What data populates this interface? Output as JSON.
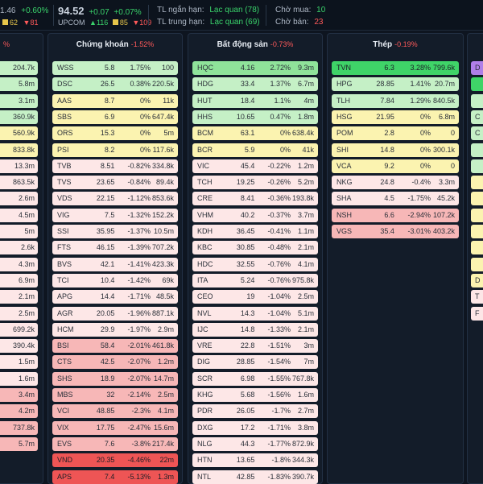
{
  "header": {
    "idx1_value": "1.46",
    "idx1_change": "+0.60%",
    "idx1_sq_count": "62",
    "idx1_down_count": "81",
    "idx2_value": "94.52",
    "idx2_change": "+0.07",
    "idx2_change_pct": "+0.07%",
    "idx2_name": "UPCOM",
    "idx2_up_count": "116",
    "idx2_sq_count": "85",
    "idx2_down_count": "109",
    "tl_short_label": "TL ngắn hạn:",
    "tl_short_value": "Lạc quan",
    "tl_short_score": "(78)",
    "tl_mid_label": "TL trung hạn:",
    "tl_mid_value": "Lạc quan",
    "tl_mid_score": "(69)",
    "buy_label": "Chờ mua:",
    "buy_value": "10",
    "sell_label": "Chờ bán:",
    "sell_value": "23",
    "up_arrow": "▲",
    "down_arrow": "▼"
  },
  "colors": {
    "up_strong": "#3fd468",
    "up_mid": "#8fe39a",
    "up_light": "#c5f0c6",
    "ref": "#fbf3b0",
    "down_light": "#fde7e7",
    "down_mid": "#f7b7b7",
    "down_strong": "#ee5555",
    "purple": "#b07fe8"
  },
  "left_partial": {
    "head_change": "%",
    "rows": [
      "204.7k",
      "5.8m",
      "3.1m",
      "360.9k",
      "560.9k",
      "833.8k",
      "13.3m",
      "863.5k",
      "2.6m",
      "4.5m",
      "5m",
      "2.6k",
      "4.3m",
      "6.9m",
      "2.1m",
      "2.5m",
      "699.2k",
      "390.4k",
      "1.5m",
      "1.6m",
      "3.4m",
      "4.2m",
      "737.8k",
      "5.7m"
    ],
    "tones": [
      "up_light",
      "up_light",
      "up_light",
      "up_light",
      "ref",
      "ref",
      "down_light",
      "down_light",
      "down_light",
      "down_light",
      "down_light",
      "down_light",
      "down_light",
      "down_light",
      "down_light",
      "down_light",
      "down_light",
      "down_light",
      "down_light",
      "down_light",
      "down_mid",
      "down_mid",
      "down_mid",
      "down_mid"
    ],
    "extra_marks": [
      "%",
      "",
      "%"
    ]
  },
  "sectors": [
    {
      "name": "Chứng khoán",
      "change": "-1.52%",
      "rows": [
        {
          "code": "WSS",
          "price": "5.8",
          "pct": "1.75%",
          "vol": "100",
          "tone": "up_light"
        },
        {
          "code": "DSC",
          "price": "26.5",
          "pct": "0.38%",
          "vol": "220.5k",
          "tone": "up_light"
        },
        {
          "code": "AAS",
          "price": "8.7",
          "pct": "0%",
          "vol": "11k",
          "tone": "ref"
        },
        {
          "code": "SBS",
          "price": "6.9",
          "pct": "0%",
          "vol": "647.4k",
          "tone": "ref"
        },
        {
          "code": "ORS",
          "price": "15.3",
          "pct": "0%",
          "vol": "5m",
          "tone": "ref"
        },
        {
          "code": "PSI",
          "price": "8.2",
          "pct": "0%",
          "vol": "117.6k",
          "tone": "ref"
        },
        {
          "code": "TVB",
          "price": "8.51",
          "pct": "-0.82%",
          "vol": "334.8k",
          "tone": "down_light"
        },
        {
          "code": "TVS",
          "price": "23.65",
          "pct": "-0.84%",
          "vol": "89.4k",
          "tone": "down_light"
        },
        {
          "code": "VDS",
          "price": "22.15",
          "pct": "-1.12%",
          "vol": "853.6k",
          "tone": "down_light"
        },
        {
          "code": "VIG",
          "price": "7.5",
          "pct": "-1.32%",
          "vol": "152.2k",
          "tone": "down_light"
        },
        {
          "code": "SSI",
          "price": "35.95",
          "pct": "-1.37%",
          "vol": "10.5m",
          "tone": "down_light"
        },
        {
          "code": "FTS",
          "price": "46.15",
          "pct": "-1.39%",
          "vol": "707.2k",
          "tone": "down_light"
        },
        {
          "code": "BVS",
          "price": "42.1",
          "pct": "-1.41%",
          "vol": "423.3k",
          "tone": "down_light"
        },
        {
          "code": "TCI",
          "price": "10.4",
          "pct": "-1.42%",
          "vol": "69k",
          "tone": "down_light"
        },
        {
          "code": "APG",
          "price": "14.4",
          "pct": "-1.71%",
          "vol": "48.5k",
          "tone": "down_light"
        },
        {
          "code": "AGR",
          "price": "20.05",
          "pct": "-1.96%",
          "vol": "887.1k",
          "tone": "down_light"
        },
        {
          "code": "HCM",
          "price": "29.9",
          "pct": "-1.97%",
          "vol": "2.9m",
          "tone": "down_light"
        },
        {
          "code": "BSI",
          "price": "58.4",
          "pct": "-2.01%",
          "vol": "461.8k",
          "tone": "down_mid"
        },
        {
          "code": "CTS",
          "price": "42.5",
          "pct": "-2.07%",
          "vol": "1.2m",
          "tone": "down_mid"
        },
        {
          "code": "SHS",
          "price": "18.9",
          "pct": "-2.07%",
          "vol": "14.7m",
          "tone": "down_mid"
        },
        {
          "code": "MBS",
          "price": "32",
          "pct": "-2.14%",
          "vol": "2.5m",
          "tone": "down_mid"
        },
        {
          "code": "VCI",
          "price": "48.85",
          "pct": "-2.3%",
          "vol": "4.1m",
          "tone": "down_mid"
        },
        {
          "code": "VIX",
          "price": "17.75",
          "pct": "-2.47%",
          "vol": "15.6m",
          "tone": "down_mid"
        },
        {
          "code": "EVS",
          "price": "7.6",
          "pct": "-3.8%",
          "vol": "217.4k",
          "tone": "down_mid"
        },
        {
          "code": "VND",
          "price": "20.35",
          "pct": "-4.46%",
          "vol": "22m",
          "tone": "down_strong"
        },
        {
          "code": "APS",
          "price": "7.4",
          "pct": "-5.13%",
          "vol": "1.3m",
          "tone": "down_strong"
        }
      ]
    },
    {
      "name": "Bất động sản",
      "change": "-0.73%",
      "rows": [
        {
          "code": "HQC",
          "price": "4.16",
          "pct": "2.72%",
          "vol": "9.3m",
          "tone": "up_mid"
        },
        {
          "code": "HDG",
          "price": "33.4",
          "pct": "1.37%",
          "vol": "6.7m",
          "tone": "up_light"
        },
        {
          "code": "HUT",
          "price": "18.4",
          "pct": "1.1%",
          "vol": "4m",
          "tone": "up_light"
        },
        {
          "code": "HHS",
          "price": "10.65",
          "pct": "0.47%",
          "vol": "1.8m",
          "tone": "up_light"
        },
        {
          "code": "BCM",
          "price": "63.1",
          "pct": "0%",
          "vol": "638.4k",
          "tone": "ref"
        },
        {
          "code": "BCR",
          "price": "5.9",
          "pct": "0%",
          "vol": "41k",
          "tone": "ref"
        },
        {
          "code": "VIC",
          "price": "45.4",
          "pct": "-0.22%",
          "vol": "1.2m",
          "tone": "down_light"
        },
        {
          "code": "TCH",
          "price": "19.25",
          "pct": "-0.26%",
          "vol": "5.2m",
          "tone": "down_light"
        },
        {
          "code": "CRE",
          "price": "8.41",
          "pct": "-0.36%",
          "vol": "193.8k",
          "tone": "down_light"
        },
        {
          "code": "VHM",
          "price": "40.2",
          "pct": "-0.37%",
          "vol": "3.7m",
          "tone": "down_light"
        },
        {
          "code": "KDH",
          "price": "36.45",
          "pct": "-0.41%",
          "vol": "1.1m",
          "tone": "down_light"
        },
        {
          "code": "KBC",
          "price": "30.85",
          "pct": "-0.48%",
          "vol": "2.1m",
          "tone": "down_light"
        },
        {
          "code": "HDC",
          "price": "32.55",
          "pct": "-0.76%",
          "vol": "4.1m",
          "tone": "down_light"
        },
        {
          "code": "ITA",
          "price": "5.24",
          "pct": "-0.76%",
          "vol": "975.8k",
          "tone": "down_light"
        },
        {
          "code": "CEO",
          "price": "19",
          "pct": "-1.04%",
          "vol": "2.5m",
          "tone": "down_light"
        },
        {
          "code": "NVL",
          "price": "14.3",
          "pct": "-1.04%",
          "vol": "5.1m",
          "tone": "down_light"
        },
        {
          "code": "IJC",
          "price": "14.8",
          "pct": "-1.33%",
          "vol": "2.1m",
          "tone": "down_light"
        },
        {
          "code": "VRE",
          "price": "22.8",
          "pct": "-1.51%",
          "vol": "3m",
          "tone": "down_light"
        },
        {
          "code": "DIG",
          "price": "28.85",
          "pct": "-1.54%",
          "vol": "7m",
          "tone": "down_light"
        },
        {
          "code": "SCR",
          "price": "6.98",
          "pct": "-1.55%",
          "vol": "767.8k",
          "tone": "down_light"
        },
        {
          "code": "KHG",
          "price": "5.68",
          "pct": "-1.56%",
          "vol": "1.6m",
          "tone": "down_light"
        },
        {
          "code": "PDR",
          "price": "26.05",
          "pct": "-1.7%",
          "vol": "2.7m",
          "tone": "down_light"
        },
        {
          "code": "DXG",
          "price": "17.2",
          "pct": "-1.71%",
          "vol": "3.8m",
          "tone": "down_light"
        },
        {
          "code": "NLG",
          "price": "44.3",
          "pct": "-1.77%",
          "vol": "872.9k",
          "tone": "down_light"
        },
        {
          "code": "HTN",
          "price": "13.65",
          "pct": "-1.8%",
          "vol": "344.3k",
          "tone": "down_light"
        },
        {
          "code": "NTL",
          "price": "42.85",
          "pct": "-1.83%",
          "vol": "390.7k",
          "tone": "down_light"
        }
      ]
    },
    {
      "name": "Thép",
      "change": "-0.19%",
      "rows": [
        {
          "code": "TVN",
          "price": "6.3",
          "pct": "3.28%",
          "vol": "799.6k",
          "tone": "up_strong"
        },
        {
          "code": "HPG",
          "price": "28.85",
          "pct": "1.41%",
          "vol": "20.7m",
          "tone": "up_light"
        },
        {
          "code": "TLH",
          "price": "7.84",
          "pct": "1.29%",
          "vol": "840.5k",
          "tone": "up_light"
        },
        {
          "code": "HSG",
          "price": "21.95",
          "pct": "0%",
          "vol": "6.8m",
          "tone": "ref"
        },
        {
          "code": "POM",
          "price": "2.8",
          "pct": "0%",
          "vol": "0",
          "tone": "ref"
        },
        {
          "code": "SHI",
          "price": "14.8",
          "pct": "0%",
          "vol": "300.1k",
          "tone": "ref"
        },
        {
          "code": "VCA",
          "price": "9.2",
          "pct": "0%",
          "vol": "0",
          "tone": "ref"
        },
        {
          "code": "NKG",
          "price": "24.8",
          "pct": "-0.4%",
          "vol": "3.3m",
          "tone": "down_light"
        },
        {
          "code": "SHA",
          "price": "4.5",
          "pct": "-1.75%",
          "vol": "45.2k",
          "tone": "down_light"
        },
        {
          "code": "NSH",
          "price": "6.6",
          "pct": "-2.94%",
          "vol": "107.2k",
          "tone": "down_mid"
        },
        {
          "code": "VGS",
          "price": "35.4",
          "pct": "-3.01%",
          "vol": "403.2k",
          "tone": "down_mid"
        }
      ]
    }
  ],
  "right_partial": {
    "rows": [
      "D",
      "",
      "",
      "C",
      "C",
      "",
      "",
      "",
      "",
      "",
      "",
      "",
      "",
      "D",
      "T",
      "F"
    ],
    "tones": [
      "purple",
      "up_strong",
      "up_light",
      "up_light",
      "up_light",
      "up_light",
      "up_light",
      "ref",
      "ref",
      "ref",
      "ref",
      "ref",
      "ref",
      "ref",
      "down_light",
      "down_light"
    ]
  }
}
